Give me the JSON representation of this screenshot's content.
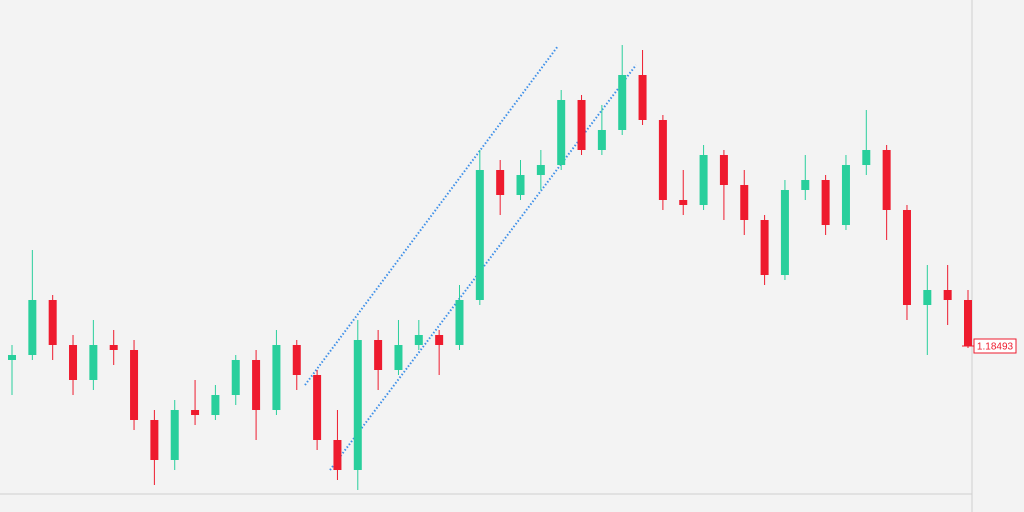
{
  "chart_data": {
    "type": "candlestick",
    "ylim": [
      1.18161,
      1.19185
    ],
    "up_color": "#29cf9c",
    "down_color": "#ee1b2e",
    "price_label": 1.18493,
    "series": [
      {
        "open": [
          1.18465,
          1.18475,
          1.18585,
          1.18495,
          1.18425,
          1.18495,
          1.18485,
          1.18345,
          1.18265,
          1.18365,
          1.18355,
          1.18395,
          1.18465,
          1.18365,
          1.18495,
          1.18435,
          1.18305,
          1.18245,
          1.18505,
          1.18445,
          1.18495,
          1.18515,
          1.18495,
          1.18585,
          1.18845,
          1.18795,
          1.18835,
          1.18855,
          1.18985,
          1.18885,
          1.18925,
          1.19035,
          1.18945,
          1.18785,
          1.18775,
          1.18875,
          1.18815,
          1.18745,
          1.18635,
          1.18805,
          1.18825,
          1.18735,
          1.18855,
          1.18885,
          1.18765,
          1.18575,
          1.18605,
          1.18585
        ],
        "high": [
          1.18495,
          1.18685,
          1.18595,
          1.18515,
          1.18545,
          1.18525,
          1.18505,
          1.18365,
          1.18385,
          1.18425,
          1.18415,
          1.18475,
          1.18485,
          1.18525,
          1.18505,
          1.18445,
          1.18365,
          1.18545,
          1.18525,
          1.18545,
          1.18545,
          1.18525,
          1.18615,
          1.18885,
          1.18865,
          1.18865,
          1.18885,
          1.19005,
          1.18995,
          1.18975,
          1.19095,
          1.19085,
          1.18955,
          1.18845,
          1.18895,
          1.18885,
          1.18845,
          1.18755,
          1.18825,
          1.18875,
          1.18835,
          1.18875,
          1.18965,
          1.18895,
          1.18775,
          1.18655,
          1.18655,
          1.18605
        ],
        "low": [
          1.18395,
          1.18465,
          1.18465,
          1.18395,
          1.18405,
          1.18455,
          1.18325,
          1.18215,
          1.18245,
          1.18335,
          1.18345,
          1.18375,
          1.18305,
          1.18355,
          1.18405,
          1.18285,
          1.18225,
          1.18205,
          1.18405,
          1.18435,
          1.18485,
          1.18435,
          1.18485,
          1.18575,
          1.18755,
          1.18785,
          1.18805,
          1.18845,
          1.18875,
          1.18875,
          1.18915,
          1.18935,
          1.18765,
          1.18755,
          1.18765,
          1.18745,
          1.18715,
          1.18615,
          1.18625,
          1.18785,
          1.18715,
          1.18725,
          1.18835,
          1.18705,
          1.18545,
          1.18475,
          1.18535,
          1.18489
        ],
        "close": [
          1.18475,
          1.18585,
          1.18495,
          1.18425,
          1.18495,
          1.18485,
          1.18345,
          1.18265,
          1.18365,
          1.18355,
          1.18395,
          1.18465,
          1.18365,
          1.18495,
          1.18435,
          1.18305,
          1.18245,
          1.18505,
          1.18445,
          1.18495,
          1.18515,
          1.18495,
          1.18585,
          1.18845,
          1.18795,
          1.18835,
          1.18855,
          1.18985,
          1.18885,
          1.18925,
          1.19035,
          1.18945,
          1.18785,
          1.18775,
          1.18875,
          1.18815,
          1.18745,
          1.18635,
          1.18805,
          1.18825,
          1.18735,
          1.18855,
          1.18885,
          1.18765,
          1.18575,
          1.18605,
          1.18585,
          1.18493
        ]
      }
    ]
  }
}
